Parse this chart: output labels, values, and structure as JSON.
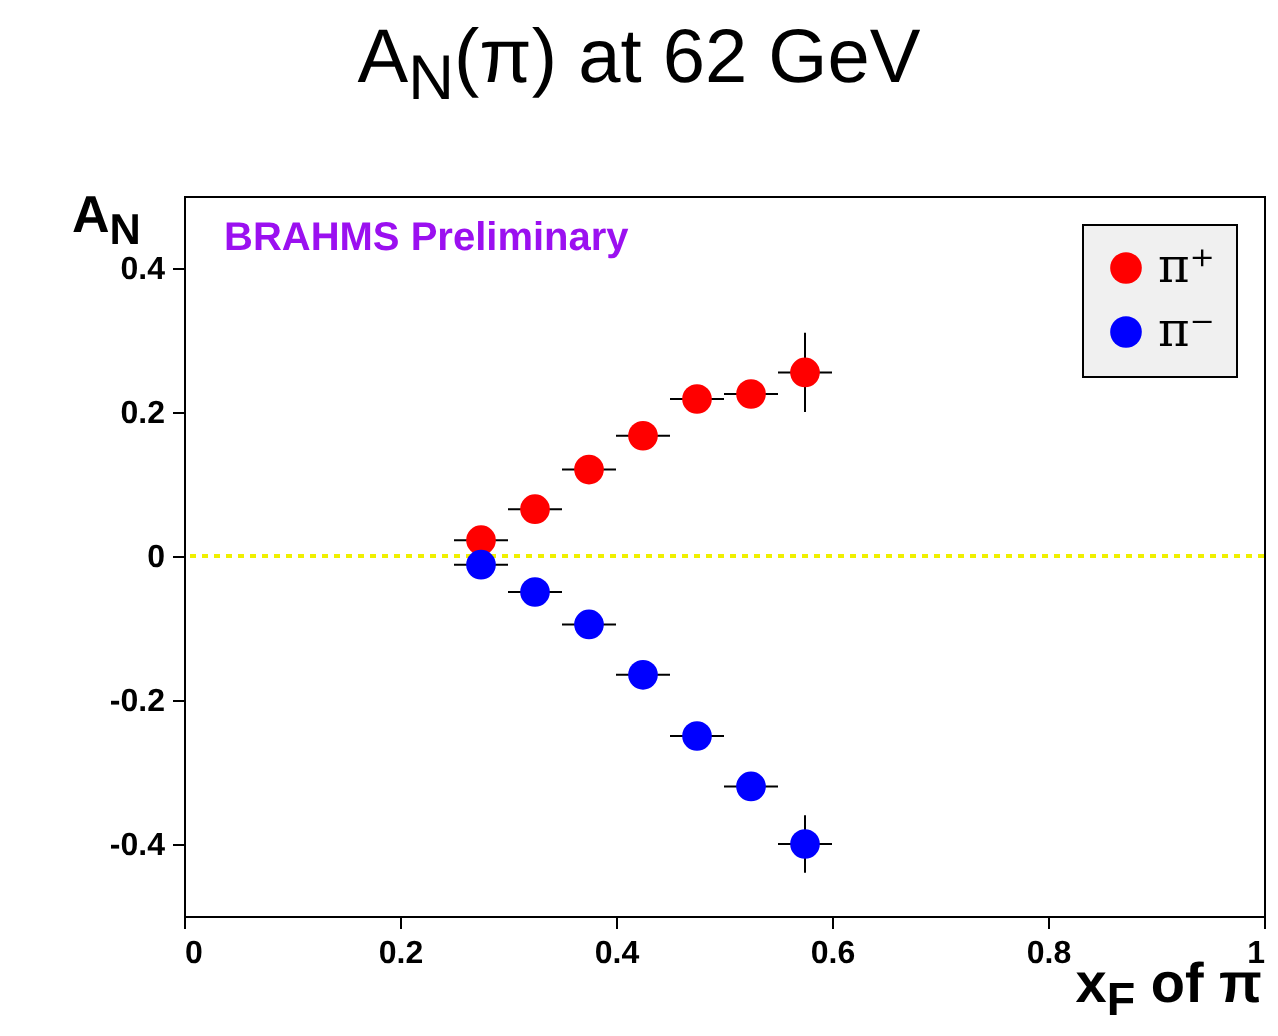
{
  "chart_data": {
    "type": "scatter",
    "title": "A$_{N}$(π) at 62 GeV",
    "xlabel": "x$_{F}$ of π",
    "ylabel": "A$_{N}$",
    "annotations": [
      "BRAHMS Preliminary"
    ],
    "x": [
      0.275,
      0.325,
      0.375,
      0.425,
      0.475,
      0.525,
      0.575
    ],
    "series": [
      {
        "name": "π⁺",
        "color": "#ff0000",
        "values": [
          0.022,
          0.065,
          0.12,
          0.167,
          0.218,
          0.225,
          0.255
        ],
        "errors": [
          null,
          null,
          null,
          null,
          null,
          null,
          0.055
        ],
        "xerrors": [
          0.025,
          0.025,
          0.025,
          0.025,
          0.025,
          0.025,
          0.025
        ]
      },
      {
        "name": "π⁻",
        "color": "#0000ff",
        "values": [
          -0.012,
          -0.05,
          -0.095,
          -0.165,
          -0.25,
          -0.32,
          -0.4
        ],
        "errors": [
          null,
          null,
          null,
          null,
          null,
          null,
          0.04
        ],
        "xerrors": [
          0.025,
          0.025,
          0.025,
          0.025,
          0.025,
          0.025,
          0.025
        ]
      }
    ],
    "xlim": [
      0,
      1
    ],
    "xticks": [
      0,
      0.2,
      0.4,
      0.6,
      0.8,
      1
    ],
    "ylim": [
      -0.5,
      0.5
    ],
    "yticks": [
      -0.4,
      -0.2,
      0,
      0.2,
      0.4
    ],
    "ref_lines": [
      {
        "axis": "y",
        "value": 0,
        "color": "#f0f000",
        "line_style": "dotted"
      }
    ],
    "legend": "top right",
    "marker": "circle",
    "grid": false
  }
}
